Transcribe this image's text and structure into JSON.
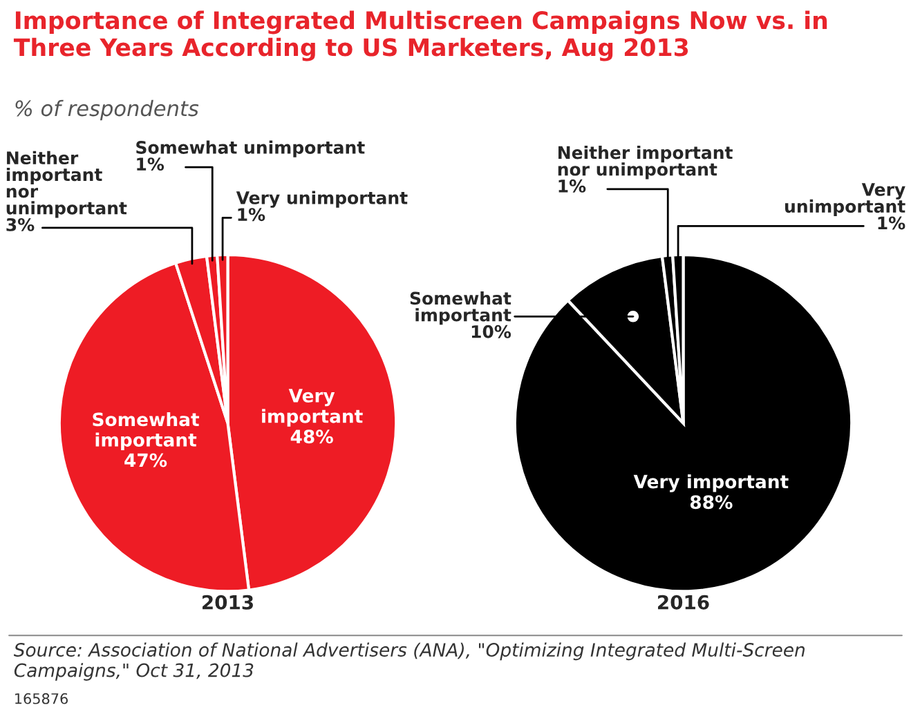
{
  "chart_data": [
    {
      "type": "pie",
      "title": "Importance of Integrated Multiscreen Campaigns Now vs. in Three Years According to US Marketers, Aug 2013",
      "subtitle": "% of respondents",
      "xlabel": "2013",
      "categories": [
        "Very important",
        "Somewhat important",
        "Neither important nor unimportant",
        "Somewhat unimportant",
        "Very unimportant"
      ],
      "values": [
        48,
        47,
        3,
        1,
        1
      ],
      "value_labels": [
        "48%",
        "47%",
        "3%",
        "1%",
        "1%"
      ],
      "colors": [
        "#ee1c25",
        "#ee1c25",
        "#ee1c25",
        "#ee1c25",
        "#ee1c25"
      ],
      "annotations": [
        "Source: Association of National Advertisers (ANA), \"Optimizing Integrated Multi-Screen Campaigns,\" Oct 31, 2013",
        "165876"
      ]
    },
    {
      "type": "pie",
      "xlabel": "2016",
      "categories": [
        "Very important",
        "Somewhat important",
        "Neither important nor unimportant",
        "Very unimportant"
      ],
      "values": [
        88,
        10,
        1,
        1
      ],
      "value_labels": [
        "88%",
        "10%",
        "1%",
        "1%"
      ],
      "colors": [
        "#000000",
        "#000000",
        "#000000",
        "#000000"
      ]
    }
  ]
}
